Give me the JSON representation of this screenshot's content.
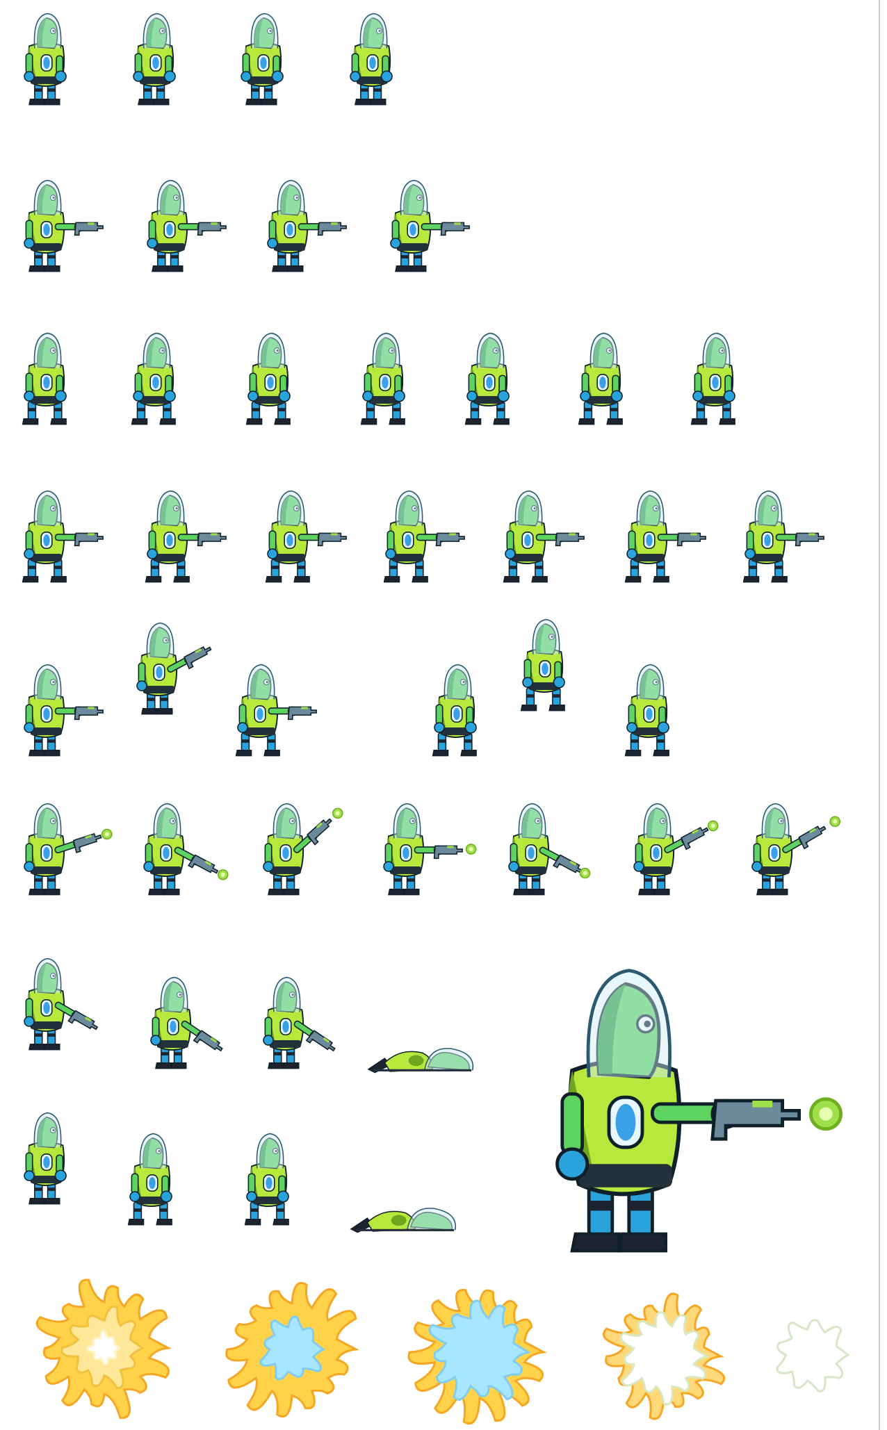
{
  "sheet": {
    "background": "#ffffff",
    "palette": {
      "skin": "#5fd35f",
      "skin_shade": "#2f9e3f",
      "armor": "#b7e83c",
      "armor_shade": "#6fa620",
      "gem": "#3aa0e8",
      "glove": "#2aa3dd",
      "boot": "#1d2430",
      "helmet": "#cfeefa",
      "gun": "#6b8a9c",
      "plasma": "#9fe04a",
      "explosion_core": "#ffd24a",
      "explosion_edge": "#f5a623",
      "explosion_smoke": "#a8e6ff"
    },
    "rows": [
      {
        "name": "idle",
        "frames": 4
      },
      {
        "name": "idle-aim",
        "frames": 4
      },
      {
        "name": "walk",
        "frames": 7
      },
      {
        "name": "walk-aim",
        "frames": 7
      },
      {
        "name": "jump",
        "frames": 6
      },
      {
        "name": "shoot",
        "frames": 7
      },
      {
        "name": "death-aim",
        "frames": 4
      },
      {
        "name": "death",
        "frames": 4
      },
      {
        "name": "explosion",
        "frames": 5
      }
    ],
    "hero_preview": {
      "name": "large-preview",
      "pose": "aim-shoot"
    }
  }
}
